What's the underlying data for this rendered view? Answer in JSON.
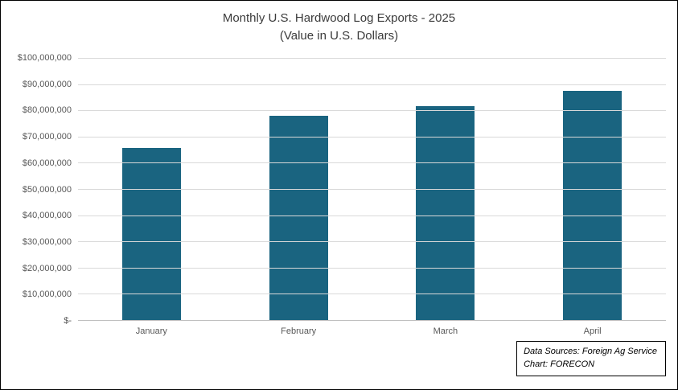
{
  "chart_data": {
    "type": "bar",
    "title": "Monthly U.S. Hardwood Log Exports - 2025",
    "subtitle": "(Value in U.S. Dollars)",
    "categories": [
      "January",
      "February",
      "March",
      "April"
    ],
    "values": [
      65500000,
      78000000,
      81500000,
      87500000
    ],
    "ylim": [
      0,
      100000000
    ],
    "ytick_step": 10000000,
    "ytick_labels": [
      "$100,000,000",
      "$90,000,000",
      "$80,000,000",
      "$70,000,000",
      "$60,000,000",
      "$50,000,000",
      "$40,000,000",
      "$30,000,000",
      "$20,000,000",
      "$10,000,000",
      "$-"
    ],
    "bar_color": "#1a6480",
    "grid": true,
    "legend": null,
    "annotation": {
      "line1": "Data Sources: Foreign Ag Service",
      "line2": "Chart: FORECON"
    }
  }
}
